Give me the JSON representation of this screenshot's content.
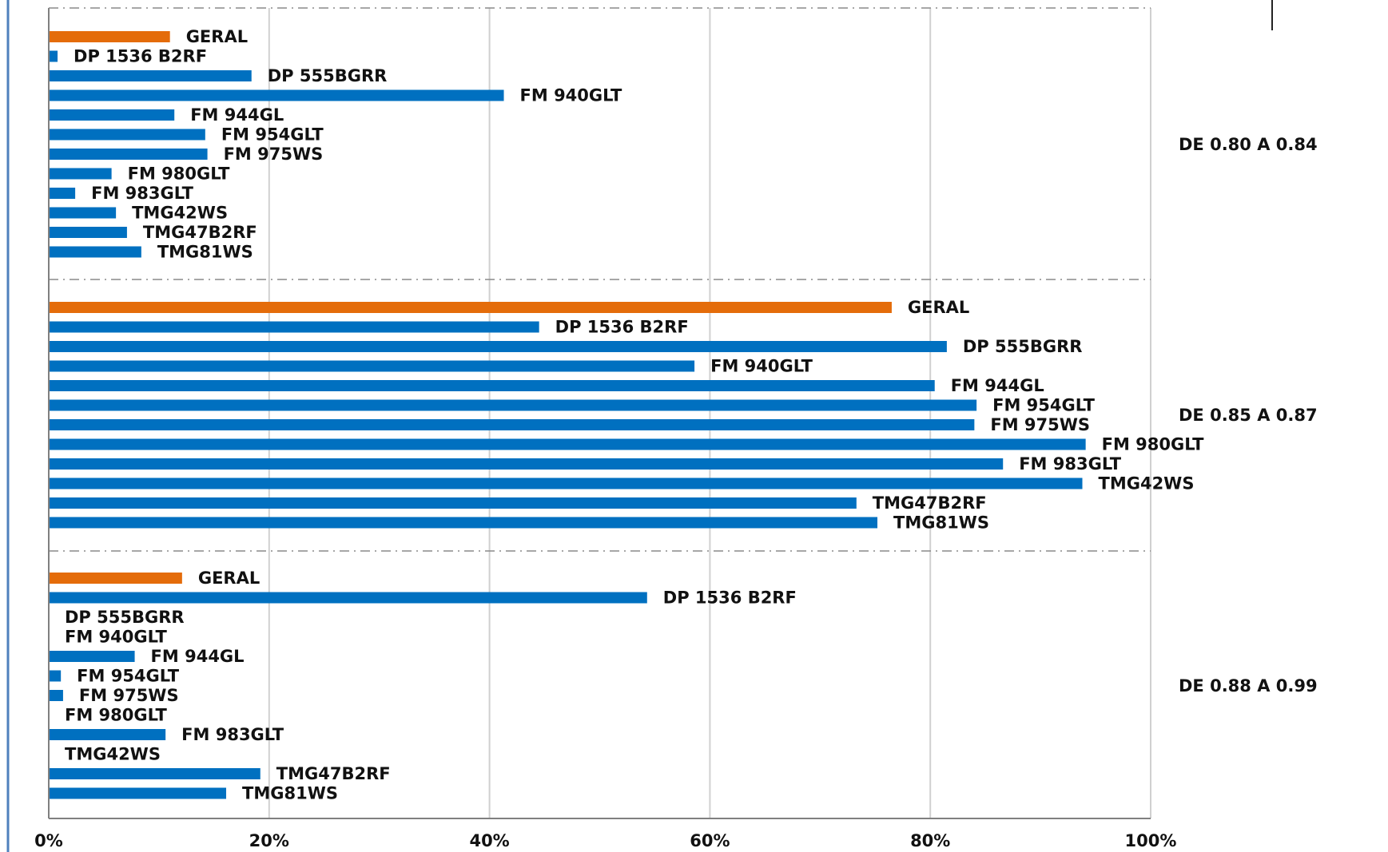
{
  "chart_data": {
    "type": "bar",
    "orientation": "horizontal",
    "xlim": [
      0,
      100
    ],
    "x_ticks": [
      "0%",
      "20%",
      "40%",
      "60%",
      "80%",
      "100%"
    ],
    "grid": true,
    "colors": {
      "geral": "#E46C0A",
      "variety": "#0070C0"
    },
    "groups": [
      {
        "name": "DE 0.80 A 0.84",
        "bars": [
          {
            "label": "GERAL",
            "value": 11
          },
          {
            "label": "DP 1536 B2RF",
            "value": 0.8
          },
          {
            "label": "DP 555BGRR",
            "value": 18.4
          },
          {
            "label": "FM 940GLT",
            "value": 41.3
          },
          {
            "label": "FM 944GL",
            "value": 11.4
          },
          {
            "label": "FM 954GLT",
            "value": 14.2
          },
          {
            "label": "FM 975WS",
            "value": 14.4
          },
          {
            "label": "FM 980GLT",
            "value": 5.7
          },
          {
            "label": "FM 983GLT",
            "value": 2.4
          },
          {
            "label": "TMG42WS",
            "value": 6.1
          },
          {
            "label": "TMG47B2RF",
            "value": 7.1
          },
          {
            "label": "TMG81WS",
            "value": 8.4
          }
        ]
      },
      {
        "name": "DE 0.85 A 0.87",
        "bars": [
          {
            "label": "GERAL",
            "value": 76.5
          },
          {
            "label": "DP 1536 B2RF",
            "value": 44.5
          },
          {
            "label": "DP 555BGRR",
            "value": 81.5
          },
          {
            "label": "FM 940GLT",
            "value": 58.6
          },
          {
            "label": "FM 944GL",
            "value": 80.4
          },
          {
            "label": "FM 954GLT",
            "value": 84.2
          },
          {
            "label": "FM 975WS",
            "value": 84.0
          },
          {
            "label": "FM 980GLT",
            "value": 94.1
          },
          {
            "label": "FM 983GLT",
            "value": 86.6
          },
          {
            "label": "TMG42WS",
            "value": 93.8
          },
          {
            "label": "TMG47B2RF",
            "value": 73.3
          },
          {
            "label": "TMG81WS",
            "value": 75.2
          }
        ]
      },
      {
        "name": "DE 0.88 A 0.99",
        "bars": [
          {
            "label": "GERAL",
            "value": 12.1
          },
          {
            "label": "DP 1536 B2RF",
            "value": 54.3
          },
          {
            "label": "DP 555BGRR",
            "value": 0
          },
          {
            "label": "FM 940GLT",
            "value": 0
          },
          {
            "label": "FM 944GL",
            "value": 7.8
          },
          {
            "label": "FM 954GLT",
            "value": 1.1
          },
          {
            "label": "FM 975WS",
            "value": 1.3
          },
          {
            "label": "FM 980GLT",
            "value": 0
          },
          {
            "label": "FM 983GLT",
            "value": 10.6
          },
          {
            "label": "TMG42WS",
            "value": 0
          },
          {
            "label": "TMG47B2RF",
            "value": 19.2
          },
          {
            "label": "TMG81WS",
            "value": 16.1
          }
        ]
      }
    ]
  }
}
